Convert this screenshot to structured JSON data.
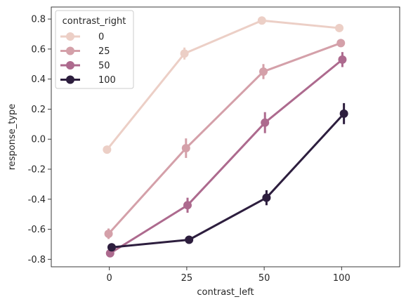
{
  "chart_data": {
    "type": "line",
    "title": "",
    "xlabel": "contrast_left",
    "ylabel": "response_type",
    "categories": [
      "0",
      "25",
      "50",
      "100"
    ],
    "ylim": [
      -0.85,
      0.88
    ],
    "yticks": [
      "-0.8",
      "-0.6",
      "-0.4",
      "-0.2",
      "0.0",
      "0.2",
      "0.4",
      "0.6",
      "0.8"
    ],
    "legend": {
      "title": "contrast_right",
      "placement": "top-left"
    },
    "series": [
      {
        "name": "0",
        "color": "#eccfc6",
        "values": [
          -0.07,
          0.57,
          0.79,
          0.74
        ],
        "errors": [
          0.015,
          0.04,
          0.01,
          0.01
        ]
      },
      {
        "name": "25",
        "color": "#d4a0a9",
        "values": [
          -0.63,
          -0.06,
          0.45,
          0.64
        ],
        "errors": [
          0.035,
          0.065,
          0.05,
          0.025
        ]
      },
      {
        "name": "50",
        "color": "#ad6a8e",
        "values": [
          -0.76,
          -0.44,
          0.11,
          0.53
        ],
        "errors": [
          0.02,
          0.05,
          0.07,
          0.05
        ]
      },
      {
        "name": "100",
        "color": "#2d1e3e",
        "values": [
          -0.72,
          -0.67,
          -0.39,
          0.17
        ],
        "errors": [
          0.015,
          0.025,
          0.05,
          0.07
        ]
      }
    ]
  }
}
